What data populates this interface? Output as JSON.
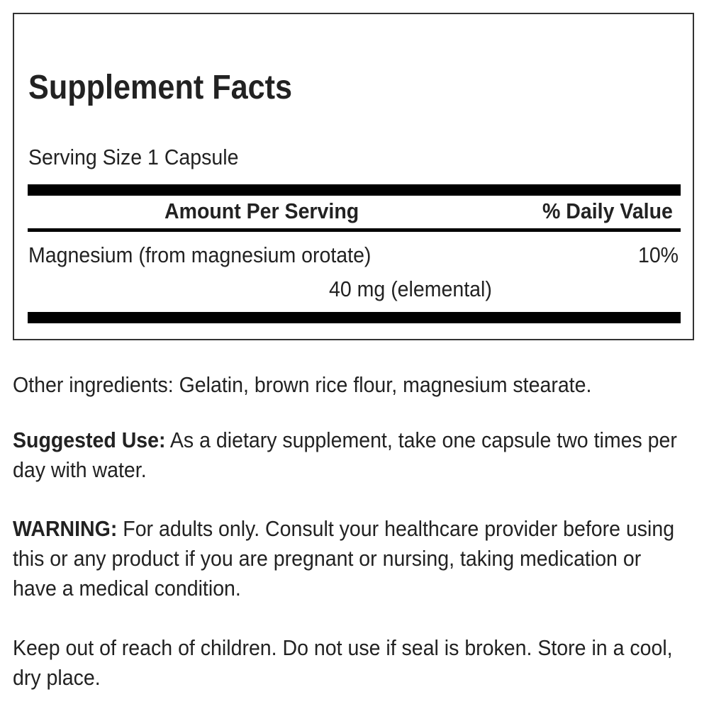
{
  "facts": {
    "title": "Supplement Facts",
    "serving_size": "Serving Size 1 Capsule",
    "col_amount": "Amount Per Serving",
    "col_dv": "% Daily Value",
    "rows": [
      {
        "name": "Magnesium (from magnesium orotate)",
        "amount": "40 mg (elemental)",
        "dv": "10%"
      }
    ]
  },
  "other": "Other ingredients: Gelatin, brown rice flour, magnesium stearate.",
  "use_label": "Suggested Use:",
  "use_text": " As a dietary supplement, take one capsule two times per day with water.",
  "warn_label": "WARNING:",
  "warn_text": " For adults only. Consult your healthcare provider before using this or any product if you are pregnant or nursing, taking medication or have a medical condition.",
  "keep": "Keep out of reach of children. Do not use if seal is broken. Store in a cool, dry place."
}
